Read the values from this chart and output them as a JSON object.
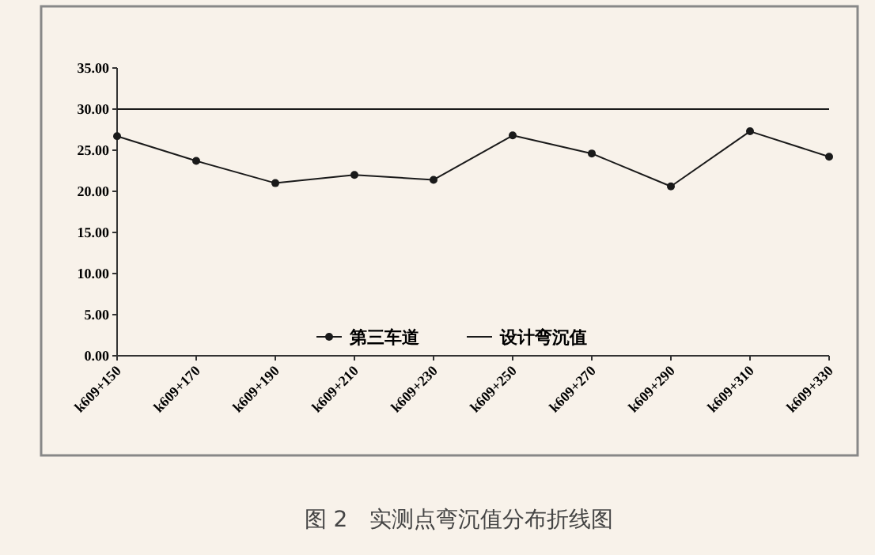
{
  "chart_data": {
    "type": "line",
    "categories": [
      "k609+150",
      "k609+170",
      "k609+190",
      "k609+210",
      "k609+230",
      "k609+250",
      "k609+270",
      "k609+290",
      "k609+310",
      "k609+330"
    ],
    "series": [
      {
        "name": "第三车道",
        "color": "#1a1a1a",
        "marker": "circle",
        "values": [
          26.7,
          23.7,
          21.0,
          22.0,
          21.4,
          26.8,
          24.6,
          20.6,
          27.3,
          24.2
        ]
      },
      {
        "name": "设计弯沉值",
        "color": "#1a1a1a",
        "marker": "none",
        "values": [
          30,
          30,
          30,
          30,
          30,
          30,
          30,
          30,
          30,
          30
        ]
      }
    ],
    "ylim": [
      0,
      35
    ],
    "yticks": [
      {
        "value": 0,
        "label": "0.00"
      },
      {
        "value": 5,
        "label": "5.00"
      },
      {
        "value": 10,
        "label": "10.00"
      },
      {
        "value": 15,
        "label": "15.00"
      },
      {
        "value": 20,
        "label": "20.00"
      },
      {
        "value": 25,
        "label": "25.00"
      },
      {
        "value": 30,
        "label": "30.00"
      },
      {
        "value": 35,
        "label": "35.00"
      }
    ],
    "grid": false,
    "legend": "bottom",
    "line_style": "solid",
    "annotations": [
      "图 2　实测点弯沉值分布折线图"
    ]
  }
}
